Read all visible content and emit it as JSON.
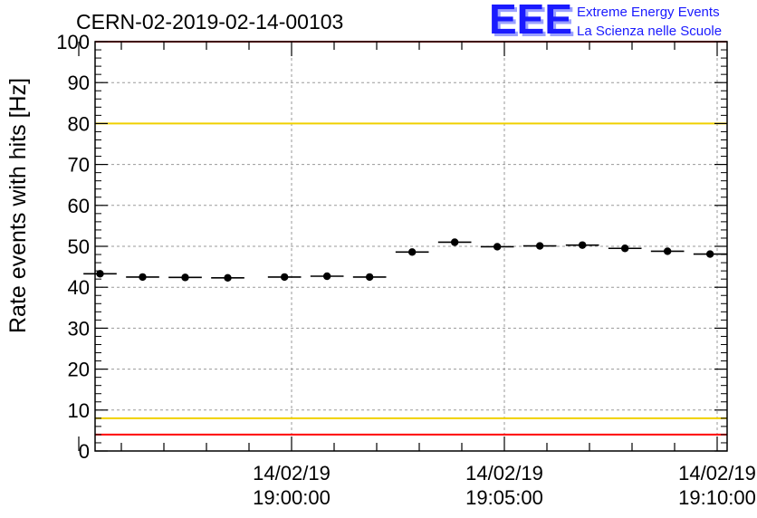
{
  "chart_data": {
    "type": "scatter",
    "title": "CERN-02-2019-02-14-00103",
    "ylabel": "Rate events with hits [Hz]",
    "xlabel": "",
    "ylim": [
      0,
      100
    ],
    "y_ticks": [
      "0",
      "10",
      "20",
      "30",
      "40",
      "50",
      "60",
      "70",
      "80",
      "90",
      "100"
    ],
    "x_tick_labels": [
      {
        "date": "14/02/19",
        "time": "19:00:00"
      },
      {
        "date": "14/02/19",
        "time": "19:05:00"
      },
      {
        "date": "14/02/19",
        "time": "19:10:00"
      }
    ],
    "grid": true,
    "points": [
      {
        "x": "18:55:30",
        "y": 43.3
      },
      {
        "x": "18:56:30",
        "y": 42.5
      },
      {
        "x": "18:57:30",
        "y": 42.4
      },
      {
        "x": "18:58:30",
        "y": 42.3
      },
      {
        "x": "18:59:50",
        "y": 42.5
      },
      {
        "x": "19:00:50",
        "y": 42.7
      },
      {
        "x": "19:01:50",
        "y": 42.5
      },
      {
        "x": "19:02:50",
        "y": 48.6
      },
      {
        "x": "19:03:50",
        "y": 51.0
      },
      {
        "x": "19:04:50",
        "y": 49.9
      },
      {
        "x": "19:05:50",
        "y": 50.1
      },
      {
        "x": "19:06:50",
        "y": 50.3
      },
      {
        "x": "19:07:50",
        "y": 49.5
      },
      {
        "x": "19:08:50",
        "y": 48.8
      },
      {
        "x": "19:09:50",
        "y": 48.1
      }
    ],
    "reference_lines": [
      {
        "y": 100,
        "color": "#ff0000"
      },
      {
        "y": 80,
        "color": "#f0d000"
      },
      {
        "y": 8,
        "color": "#f0d000"
      },
      {
        "y": 4,
        "color": "#ff0000"
      }
    ],
    "colors": {
      "points": "#000000",
      "grid": "#9a9a9a",
      "logo": "#1a1aff"
    }
  },
  "logo": {
    "mark": "EEE",
    "line1": "Extreme Energy Events",
    "line2": "La Scienza nelle Scuole"
  }
}
